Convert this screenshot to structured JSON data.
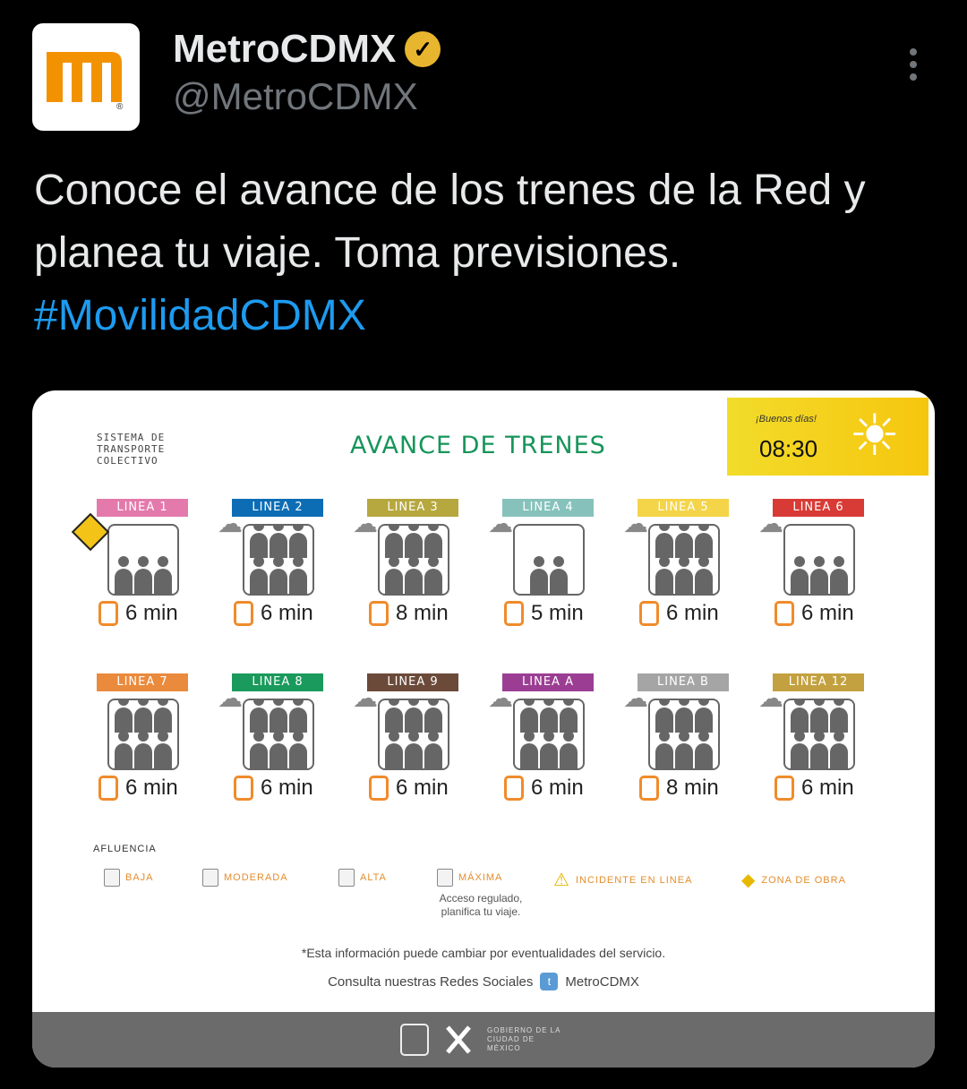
{
  "tweet": {
    "name": "MetroCDMX",
    "handle": "@MetroCDMX",
    "verified_icon": "verified-badge-gold",
    "text": "Conoce el avance de los trenes de la Red y planea tu viaje. Toma previsiones.",
    "hashtag": "#MovilidadCDMX"
  },
  "card": {
    "system": "SISTEMA DE TRANSPORTE COLECTIVO",
    "title": "AVANCE DE TRENES",
    "greeting": "¡Buenos días!",
    "time": "08:30",
    "lines": [
      {
        "label": "LINEA 1",
        "color": "#e37aab",
        "crowd": "alta",
        "rain": false,
        "work": true,
        "wait": "6 min"
      },
      {
        "label": "LINEA 2",
        "color": "#0c6db5",
        "crowd": "máxima",
        "rain": true,
        "work": false,
        "wait": "6 min"
      },
      {
        "label": "LINEA 3",
        "color": "#b6a83f",
        "crowd": "máxima",
        "rain": true,
        "work": false,
        "wait": "8 min"
      },
      {
        "label": "LINEA 4",
        "color": "#86c2bb",
        "crowd": "moderada",
        "rain": true,
        "work": false,
        "wait": "5 min"
      },
      {
        "label": "LINEA 5",
        "color": "#f4d449",
        "crowd": "máxima",
        "rain": true,
        "work": false,
        "wait": "6 min"
      },
      {
        "label": "LINEA 6",
        "color": "#d83b35",
        "crowd": "alta",
        "rain": true,
        "work": false,
        "wait": "6 min"
      },
      {
        "label": "LINEA 7",
        "color": "#ea8a3c",
        "crowd": "máxima",
        "rain": false,
        "work": false,
        "wait": "6 min"
      },
      {
        "label": "LINEA 8",
        "color": "#1a9a5c",
        "crowd": "máxima",
        "rain": true,
        "work": false,
        "wait": "6 min"
      },
      {
        "label": "LINEA 9",
        "color": "#6b4a3a",
        "crowd": "máxima",
        "rain": true,
        "work": false,
        "wait": "6 min"
      },
      {
        "label": "LINEA A",
        "color": "#9b3e93",
        "crowd": "máxima",
        "rain": true,
        "work": false,
        "wait": "6 min"
      },
      {
        "label": "LINEA B",
        "color": "#a5a5a5",
        "crowd": "máxima",
        "rain": true,
        "work": false,
        "wait": "8 min"
      },
      {
        "label": "LINEA 12",
        "color": "#c4a140",
        "crowd": "máxima",
        "rain": true,
        "work": false,
        "wait": "6 min"
      }
    ],
    "legend_title": "AFLUENCIA",
    "legend": [
      "BAJA",
      "MODERADA",
      "ALTA",
      "MÁXIMA",
      "INCIDENTE EN LINEA",
      "ZONA DE OBRA"
    ],
    "legend_note": "Acceso regulado, planifica tu viaje.",
    "disclaimer": "*Esta información puede cambiar por eventualidades del servicio.",
    "social": "Consulta nuestras Redes Sociales",
    "social_handle": "MetroCDMX",
    "footer": "GOBIERNO DE LA CIUDAD DE MÉXICO"
  }
}
